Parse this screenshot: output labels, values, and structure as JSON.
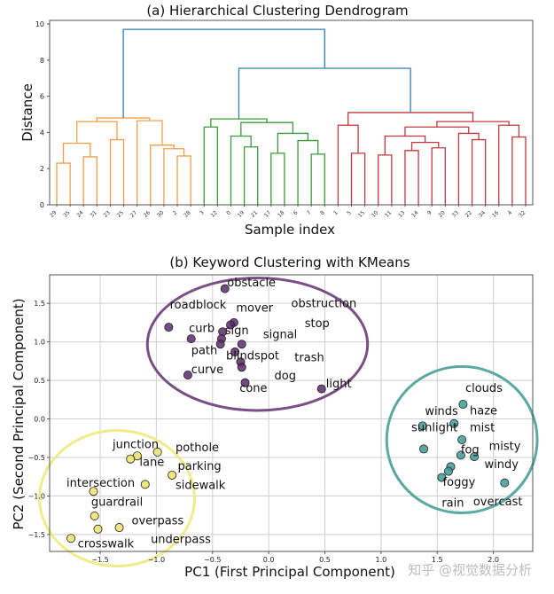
{
  "chart_data": [
    {
      "type": "dendrogram",
      "title": "(a) Hierarchical Clustering Dendrogram",
      "xlabel": "Sample index",
      "ylabel": "Distance",
      "ylim": [
        0,
        10
      ],
      "yticks": [
        0,
        2,
        4,
        6,
        8,
        10
      ],
      "leaf_order": [
        "29",
        "35",
        "24",
        "31",
        "23",
        "25",
        "27",
        "26",
        "30",
        "2",
        "28",
        "3",
        "12",
        "0",
        "19",
        "21",
        "17",
        "18",
        "6",
        "7",
        "8",
        "1",
        "5",
        "15",
        "10",
        "11",
        "13",
        "14",
        "9",
        "20",
        "33",
        "22",
        "34",
        "16",
        "4",
        "32"
      ],
      "colors": {
        "orange": "#f0a04a",
        "green": "#3c9a3c",
        "red": "#c0393f",
        "blue": "#2f7fb0"
      },
      "merges": [
        {
          "a": "L0",
          "b": "L1",
          "h": 2.3,
          "c": "orange"
        },
        {
          "a": "L2",
          "b": "L3",
          "h": 2.65,
          "c": "orange"
        },
        {
          "a": "M0",
          "b": "M1",
          "h": 3.4,
          "c": "orange"
        },
        {
          "a": "L4",
          "b": "L5",
          "h": 3.6,
          "c": "orange"
        },
        {
          "a": "M2",
          "b": "M3",
          "h": 4.6,
          "c": "orange"
        },
        {
          "a": "L9",
          "b": "L10",
          "h": 2.7,
          "c": "orange"
        },
        {
          "a": "L8",
          "b": "M5",
          "h": 3.1,
          "c": "orange"
        },
        {
          "a": "L7",
          "b": "M6",
          "h": 3.3,
          "c": "orange"
        },
        {
          "a": "L6",
          "b": "M7",
          "h": 4.65,
          "c": "orange"
        },
        {
          "a": "M4",
          "b": "M8",
          "h": 4.8,
          "c": "orange"
        },
        {
          "a": "L11",
          "b": "L12",
          "h": 4.3,
          "c": "green"
        },
        {
          "a": "L14",
          "b": "L15",
          "h": 3.2,
          "c": "green"
        },
        {
          "a": "L13",
          "b": "M11",
          "h": 3.8,
          "c": "green"
        },
        {
          "a": "L16",
          "b": "L17",
          "h": 2.85,
          "c": "green"
        },
        {
          "a": "L19",
          "b": "L20",
          "h": 2.8,
          "c": "green"
        },
        {
          "a": "L18",
          "b": "M14",
          "h": 3.55,
          "c": "green"
        },
        {
          "a": "M13",
          "b": "M15",
          "h": 3.95,
          "c": "green"
        },
        {
          "a": "M12",
          "b": "M16",
          "h": 4.55,
          "c": "green"
        },
        {
          "a": "M10",
          "b": "M17",
          "h": 4.75,
          "c": "green"
        },
        {
          "a": "L22",
          "b": "L23",
          "h": 2.85,
          "c": "red"
        },
        {
          "a": "L21",
          "b": "M19",
          "h": 4.4,
          "c": "red"
        },
        {
          "a": "L24",
          "b": "L25",
          "h": 2.75,
          "c": "red"
        },
        {
          "a": "L26",
          "b": "L27",
          "h": 3.0,
          "c": "red"
        },
        {
          "a": "L28",
          "b": "L29",
          "h": 3.15,
          "c": "red"
        },
        {
          "a": "M22",
          "b": "M23",
          "h": 3.45,
          "c": "red"
        },
        {
          "a": "M21",
          "b": "M24",
          "h": 3.8,
          "c": "red"
        },
        {
          "a": "L31",
          "b": "L32",
          "h": 3.6,
          "c": "red"
        },
        {
          "a": "L30",
          "b": "M26",
          "h": 3.95,
          "c": "red"
        },
        {
          "a": "M25",
          "b": "M27",
          "h": 4.3,
          "c": "red"
        },
        {
          "a": "L34",
          "b": "L35",
          "h": 3.75,
          "c": "red"
        },
        {
          "a": "L33",
          "b": "M29",
          "h": 4.4,
          "c": "red"
        },
        {
          "a": "M28",
          "b": "M30",
          "h": 4.6,
          "c": "red"
        },
        {
          "a": "M20",
          "b": "M31",
          "h": 5.1,
          "c": "red"
        },
        {
          "a": "M18",
          "b": "M32",
          "h": 7.55,
          "c": "blue"
        },
        {
          "a": "M9",
          "b": "M33",
          "h": 9.7,
          "c": "blue"
        }
      ]
    },
    {
      "type": "scatter",
      "title": "(b) Keyword Clustering with KMeans",
      "xlabel": "PC1 (First Principal Component)",
      "ylabel": "PC2 (Second Principal Component)",
      "xlim": [
        -1.95,
        2.35
      ],
      "ylim": [
        -1.72,
        1.87
      ],
      "xticks": [
        -1.5,
        -1.0,
        -0.5,
        0.0,
        0.5,
        1.0,
        1.5,
        2.0
      ],
      "xtick_labels": [
        "−1.5",
        "−1.0",
        "−0.5",
        "0.0",
        "0.5",
        "1.0",
        "1.5",
        "2.0"
      ],
      "yticks": [
        -1.5,
        -1.0,
        -0.5,
        0.0,
        0.5,
        1.0,
        1.5
      ],
      "ytick_labels": [
        "−1.5",
        "−1.0",
        "−0.5",
        "0.0",
        "0.5",
        "1.0",
        "1.5"
      ],
      "grid": true,
      "clusters": [
        {
          "name": "cluster-purple",
          "color": "#5b2a6b",
          "ring": "#7a4f86",
          "ellipse": {
            "cx": -0.1,
            "cy": 0.97,
            "rx": 0.98,
            "ry": 0.86
          }
        },
        {
          "name": "cluster-teal",
          "color": "#3f9a94",
          "ring": "#5aa9a3",
          "ellipse": {
            "cx": 1.72,
            "cy": -0.27,
            "rx": 0.67,
            "ry": 0.95
          }
        },
        {
          "name": "cluster-yellow",
          "color": "#f0e26a",
          "ring": "#f0ec8a",
          "ellipse": {
            "cx": -1.35,
            "cy": -1.03,
            "rx": 0.69,
            "ry": 0.88
          }
        }
      ],
      "points": [
        {
          "x": -0.39,
          "y": 1.69,
          "c": 0
        },
        {
          "x": -0.31,
          "y": 1.25,
          "c": 0
        },
        {
          "x": -0.34,
          "y": 1.22,
          "c": 0
        },
        {
          "x": -0.89,
          "y": 1.19,
          "c": 0
        },
        {
          "x": -0.41,
          "y": 1.13,
          "c": 0
        },
        {
          "x": -0.69,
          "y": 1.04,
          "c": 0
        },
        {
          "x": -0.42,
          "y": 1.04,
          "c": 0
        },
        {
          "x": -0.43,
          "y": 0.97,
          "c": 0
        },
        {
          "x": -0.24,
          "y": 0.97,
          "c": 0
        },
        {
          "x": -0.3,
          "y": 0.87,
          "c": 0
        },
        {
          "x": -0.25,
          "y": 0.74,
          "c": 0
        },
        {
          "x": -0.24,
          "y": 0.67,
          "c": 0
        },
        {
          "x": -0.72,
          "y": 0.57,
          "c": 0
        },
        {
          "x": -0.21,
          "y": 0.47,
          "c": 0
        },
        {
          "x": 0.47,
          "y": 0.39,
          "c": 0
        },
        {
          "x": 1.73,
          "y": 0.19,
          "c": 1
        },
        {
          "x": 1.37,
          "y": -0.09,
          "c": 1
        },
        {
          "x": 1.65,
          "y": -0.06,
          "c": 1
        },
        {
          "x": 1.72,
          "y": -0.27,
          "c": 1
        },
        {
          "x": 1.38,
          "y": -0.39,
          "c": 1
        },
        {
          "x": 1.71,
          "y": -0.47,
          "c": 1
        },
        {
          "x": 1.83,
          "y": -0.49,
          "c": 1
        },
        {
          "x": 1.62,
          "y": -0.62,
          "c": 1
        },
        {
          "x": 1.6,
          "y": -0.68,
          "c": 1
        },
        {
          "x": 1.54,
          "y": -0.76,
          "c": 1
        },
        {
          "x": 2.1,
          "y": -0.83,
          "c": 1
        },
        {
          "x": -0.99,
          "y": -0.43,
          "c": 2
        },
        {
          "x": -1.17,
          "y": -0.48,
          "c": 2
        },
        {
          "x": -1.23,
          "y": -0.52,
          "c": 2
        },
        {
          "x": -0.86,
          "y": -0.73,
          "c": 2
        },
        {
          "x": -1.1,
          "y": -0.85,
          "c": 2
        },
        {
          "x": -1.56,
          "y": -0.94,
          "c": 2
        },
        {
          "x": -1.55,
          "y": -1.26,
          "c": 2
        },
        {
          "x": -1.33,
          "y": -1.41,
          "c": 2
        },
        {
          "x": -1.52,
          "y": -1.43,
          "c": 2
        },
        {
          "x": -1.76,
          "y": -1.55,
          "c": 2
        }
      ],
      "labels": [
        {
          "text": "obstacle",
          "x": -0.37,
          "y": 1.72
        },
        {
          "text": "roadblock",
          "x": -0.88,
          "y": 1.43
        },
        {
          "text": "mover",
          "x": -0.29,
          "y": 1.39
        },
        {
          "text": "obstruction",
          "x": 0.2,
          "y": 1.45
        },
        {
          "text": "stop",
          "x": 0.32,
          "y": 1.19
        },
        {
          "text": "curb",
          "x": -0.71,
          "y": 1.13
        },
        {
          "text": "sign",
          "x": -0.39,
          "y": 1.1
        },
        {
          "text": "signal",
          "x": -0.05,
          "y": 1.05
        },
        {
          "text": "path",
          "x": -0.69,
          "y": 0.84
        },
        {
          "text": "blindspot",
          "x": -0.38,
          "y": 0.77
        },
        {
          "text": "trash",
          "x": 0.23,
          "y": 0.75
        },
        {
          "text": "curve",
          "x": -0.69,
          "y": 0.59
        },
        {
          "text": "dog",
          "x": 0.05,
          "y": 0.51
        },
        {
          "text": "cone",
          "x": -0.26,
          "y": 0.35
        },
        {
          "text": "light",
          "x": 0.51,
          "y": 0.41
        },
        {
          "text": "clouds",
          "x": 1.75,
          "y": 0.35
        },
        {
          "text": "winds",
          "x": 1.39,
          "y": 0.05
        },
        {
          "text": "haze",
          "x": 1.79,
          "y": 0.06
        },
        {
          "text": "sunlight",
          "x": 1.27,
          "y": -0.16
        },
        {
          "text": "mist",
          "x": 1.79,
          "y": -0.16
        },
        {
          "text": "misty",
          "x": 1.96,
          "y": -0.4
        },
        {
          "text": "fog",
          "x": 1.71,
          "y": -0.45
        },
        {
          "text": "windy",
          "x": 1.92,
          "y": -0.64
        },
        {
          "text": "foggy",
          "x": 1.55,
          "y": -0.87
        },
        {
          "text": "rain",
          "x": 1.54,
          "y": -1.14
        },
        {
          "text": "overcast",
          "x": 1.82,
          "y": -1.12
        },
        {
          "text": "junction",
          "x": -1.39,
          "y": -0.38
        },
        {
          "text": "pothole",
          "x": -0.83,
          "y": -0.42
        },
        {
          "text": "lane",
          "x": -1.15,
          "y": -0.61
        },
        {
          "text": "parking",
          "x": -0.81,
          "y": -0.66
        },
        {
          "text": "intersection",
          "x": -1.8,
          "y": -0.88
        },
        {
          "text": "sidewalk",
          "x": -0.83,
          "y": -0.91
        },
        {
          "text": "guardrail",
          "x": -1.58,
          "y": -1.13
        },
        {
          "text": "overpass",
          "x": -1.22,
          "y": -1.37
        },
        {
          "text": "crosswalk",
          "x": -1.7,
          "y": -1.67
        },
        {
          "text": "underpass",
          "x": -1.05,
          "y": -1.61
        }
      ]
    }
  ],
  "watermark": "知乎 @视觉数据分析"
}
